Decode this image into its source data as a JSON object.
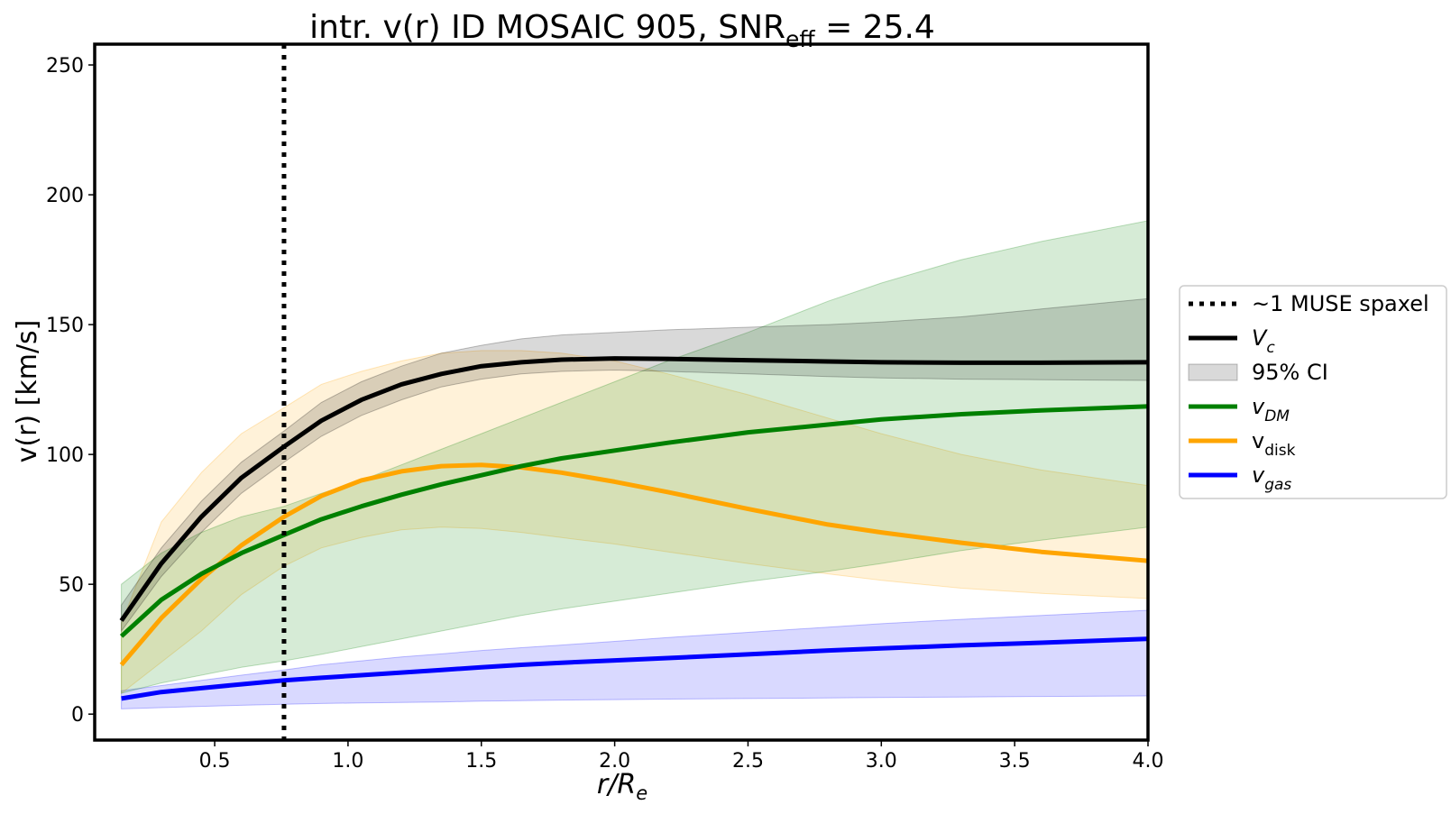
{
  "chart_data": {
    "type": "line",
    "title": {
      "prefix": "intr. v(r) ID MOSAIC 905, SNR",
      "sub": "eff",
      "suffix": " = 25.4"
    },
    "xlabel": {
      "main": "r/R",
      "sub": "e"
    },
    "ylabel": "v(r) [km/s]",
    "xlim": [
      0.05,
      4.0
    ],
    "ylim": [
      -10,
      258
    ],
    "xticks": [
      0.5,
      1.0,
      1.5,
      2.0,
      2.5,
      3.0,
      3.5,
      4.0
    ],
    "xtick_labels": [
      "0.5",
      "1.0",
      "1.5",
      "2.0",
      "2.5",
      "3.0",
      "3.5",
      "4.0"
    ],
    "yticks": [
      0,
      50,
      100,
      150,
      200,
      250
    ],
    "ytick_labels": [
      "0",
      "50",
      "100",
      "150",
      "200",
      "250"
    ],
    "vline": {
      "x": 0.76,
      "label": "~1 MUSE spaxel"
    },
    "x": [
      0.15,
      0.3,
      0.45,
      0.6,
      0.76,
      0.9,
      1.05,
      1.2,
      1.35,
      1.5,
      1.65,
      1.8,
      2.0,
      2.2,
      2.5,
      2.8,
      3.0,
      3.3,
      3.6,
      4.0
    ],
    "series": [
      {
        "key": "vgas",
        "name": "gas",
        "color": "#0000ff",
        "fill_alpha": 0.15,
        "values": [
          6,
          8.5,
          10,
          11.5,
          13,
          14,
          15,
          16,
          17,
          18,
          19,
          19.8,
          20.7,
          21.6,
          23,
          24.5,
          25.3,
          26.5,
          27.5,
          29
        ],
        "lower": [
          2,
          2.5,
          3,
          3.4,
          3.8,
          4.1,
          4.3,
          4.5,
          4.7,
          5,
          5.2,
          5.4,
          5.6,
          5.8,
          6,
          6.2,
          6.4,
          6.6,
          6.8,
          7
        ],
        "upper": [
          9,
          11,
          13,
          15,
          17,
          19,
          20.5,
          22,
          23.2,
          24.5,
          25.6,
          26.6,
          28,
          29.5,
          31.5,
          33.5,
          34.8,
          36.5,
          38,
          40
        ]
      },
      {
        "key": "vdisk",
        "name": "disk",
        "color": "#ffa500",
        "fill_alpha": 0.15,
        "values": [
          19,
          37,
          52,
          65,
          76,
          84,
          90,
          93.5,
          95.5,
          96,
          95,
          93,
          89.5,
          85.5,
          79,
          73,
          70,
          66,
          62.5,
          59
        ],
        "lower": [
          8,
          20,
          32,
          46,
          57,
          64,
          68,
          71,
          72,
          71.5,
          70,
          68,
          65.5,
          62.5,
          58,
          54,
          51.5,
          48.5,
          46.5,
          44.5
        ],
        "upper": [
          35,
          74,
          93,
          108,
          118,
          127,
          132,
          136,
          139,
          140,
          140,
          139,
          136,
          131,
          123,
          114,
          108,
          100,
          94,
          88
        ]
      },
      {
        "key": "vdm",
        "name": "DM",
        "color": "#008000",
        "fill_alpha": 0.16,
        "values": [
          30,
          44,
          54,
          62,
          69,
          75,
          80,
          84.5,
          88.5,
          92,
          95.5,
          98.5,
          101.5,
          104.5,
          108.5,
          111.5,
          113.5,
          115.5,
          117,
          118.5
        ],
        "lower": [
          8,
          12,
          15,
          18,
          20.5,
          23,
          26,
          29,
          32,
          35,
          38,
          40.5,
          43.5,
          46.5,
          51,
          55,
          58,
          63,
          67,
          72
        ],
        "upper": [
          50,
          62,
          70,
          76,
          80,
          85,
          90,
          96,
          102,
          108,
          114,
          120,
          128,
          136,
          147,
          159,
          166,
          175,
          182,
          190
        ]
      },
      {
        "key": "vc",
        "name": "V_c",
        "color": "#000000",
        "fill_alpha": 0.15,
        "values": [
          36,
          58,
          76,
          91,
          103,
          113,
          121,
          127,
          131,
          134,
          135.5,
          136.5,
          137,
          136.8,
          136.3,
          135.8,
          135.5,
          135.3,
          135.3,
          135.5
        ],
        "lower": [
          32,
          53,
          70,
          85,
          97,
          107,
          115,
          121,
          126,
          129,
          131,
          132,
          132.5,
          132,
          131,
          130,
          129.5,
          129,
          128.8,
          128.5
        ],
        "upper": [
          42,
          64,
          82,
          97,
          109,
          120,
          128,
          134,
          139,
          142,
          144.5,
          146,
          147,
          148,
          149,
          150,
          151,
          153,
          156,
          160
        ]
      }
    ],
    "legend": {
      "position": "center-right",
      "items": [
        {
          "kind": "dotted-line",
          "color": "#000000",
          "label": "~1 MUSE spaxel"
        },
        {
          "kind": "line",
          "color": "#000000",
          "label": "V",
          "sub": "c",
          "italic": true
        },
        {
          "kind": "patch",
          "color": "#000000",
          "label": "95% CI"
        },
        {
          "kind": "line",
          "color": "#008000",
          "label": "v",
          "sub": "DM",
          "italic": true
        },
        {
          "kind": "line",
          "color": "#ffa500",
          "label": "v",
          "sub": "disk",
          "italic": false
        },
        {
          "kind": "line",
          "color": "#0000ff",
          "label": "v",
          "sub": "gas",
          "italic": true
        }
      ]
    }
  }
}
